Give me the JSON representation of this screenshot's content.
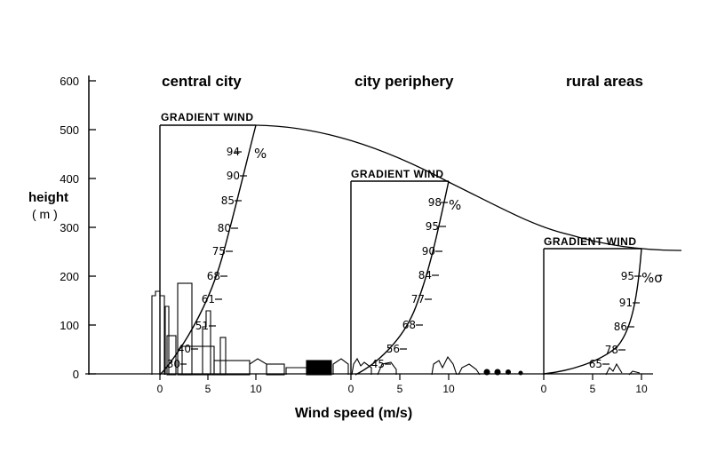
{
  "y_axis": {
    "title_line1": "height",
    "title_line2": "( m )",
    "ticks": [
      "0",
      "100",
      "200",
      "300",
      "400",
      "500",
      "600"
    ]
  },
  "x_axis": {
    "title": "Wind speed (m/s)"
  },
  "panels": [
    {
      "title": "central city",
      "gradient_label": "GRADIENT WIND",
      "x_ticks": [
        "0",
        "5",
        "10"
      ],
      "gradient_height_m": 510,
      "profile_labels": [
        "94",
        "90",
        "85",
        "80",
        "75",
        "68",
        "61",
        "51",
        "40",
        "30"
      ],
      "unit_label": "%"
    },
    {
      "title": "city periphery",
      "gradient_label": "GRADIENT WIND",
      "x_ticks": [
        "0",
        "5",
        "10"
      ],
      "gradient_height_m": 400,
      "profile_labels": [
        "98",
        "95",
        "90",
        "84",
        "77",
        "68",
        "56",
        "45"
      ],
      "unit_label": "%"
    },
    {
      "title": "rural areas",
      "gradient_label": "GRADIENT WIND",
      "x_ticks": [
        "0",
        "5",
        "10"
      ],
      "gradient_height_m": 255,
      "profile_labels": [
        "95",
        "91",
        "86",
        "78",
        "65"
      ],
      "unit_label": "%σ"
    }
  ]
}
